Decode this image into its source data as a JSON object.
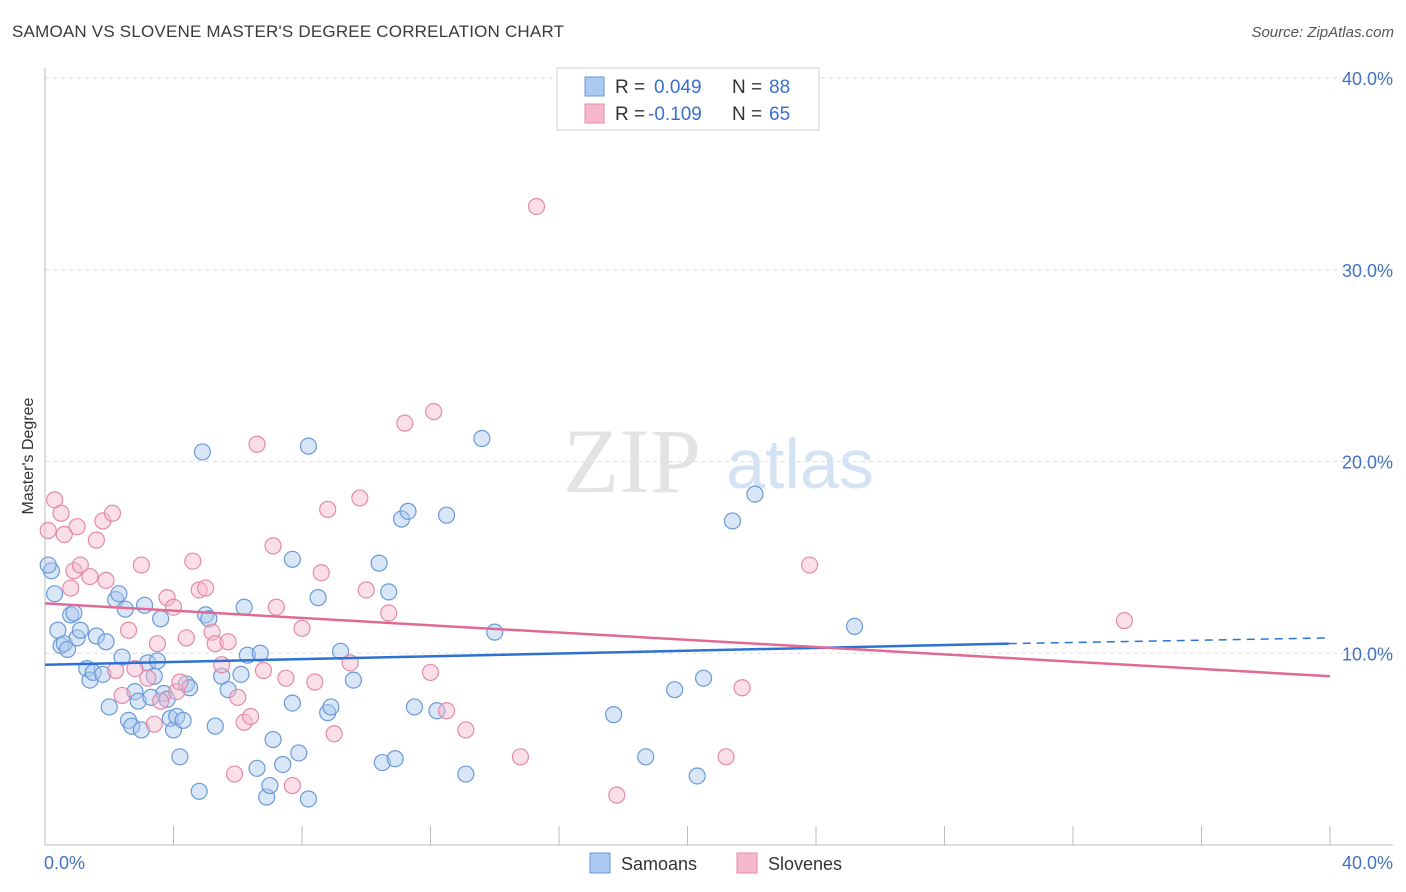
{
  "header": {
    "title": "SAMOAN VS SLOVENE MASTER'S DEGREE CORRELATION CHART",
    "source": "Source: ZipAtlas.com"
  },
  "watermark": {
    "zip": "ZIP",
    "atlas": "atlas"
  },
  "legend": {
    "rows": [
      {
        "r_label": "R = ",
        "r_value": "0.049",
        "n_label": "N = ",
        "n_value": "88"
      },
      {
        "r_label": "R = ",
        "r_value": "-0.109",
        "n_label": "N = ",
        "n_value": "65"
      }
    ]
  },
  "bottom_legend": {
    "series1": "Samoans",
    "series2": "Slovenes"
  },
  "colors": {
    "samoans_fill": "#aac8f0",
    "samoans_stroke": "#6a9ad8",
    "samoans_line": "#2d72d2",
    "slovenes_fill": "#f6b8cc",
    "slovenes_stroke": "#e48aa8",
    "slovenes_line": "#e06a94",
    "grid": "#dddddd",
    "axis_label": "#4472c4"
  },
  "chart_data": {
    "type": "scatter",
    "title": "SAMOAN VS SLOVENE MASTER'S DEGREE CORRELATION CHART",
    "xlabel": "",
    "ylabel": "Master's Degree",
    "xlim": [
      0,
      40
    ],
    "ylim": [
      0,
      40
    ],
    "x_tick_labels": [
      "0.0%",
      "40.0%"
    ],
    "y_tick_values": [
      10,
      20,
      30,
      40
    ],
    "y_tick_labels": [
      "10.0%",
      "20.0%",
      "30.0%",
      "40.0%"
    ],
    "grid": true,
    "series": [
      {
        "name": "Samoans",
        "r": 0.049,
        "n": 88,
        "trend": {
          "x": [
            0,
            30
          ],
          "y": [
            9.4,
            10.5
          ],
          "dashed_to": [
            40,
            10.8
          ]
        },
        "points": [
          [
            0.2,
            14.3
          ],
          [
            0.3,
            13.1
          ],
          [
            0.4,
            11.2
          ],
          [
            0.5,
            10.4
          ],
          [
            0.6,
            10.5
          ],
          [
            0.7,
            10.2
          ],
          [
            0.8,
            12.0
          ],
          [
            0.9,
            12.1
          ],
          [
            1.0,
            10.8
          ],
          [
            1.1,
            11.2
          ],
          [
            1.3,
            9.2
          ],
          [
            1.4,
            8.6
          ],
          [
            1.5,
            9.0
          ],
          [
            1.6,
            10.9
          ],
          [
            1.8,
            8.9
          ],
          [
            1.9,
            10.6
          ],
          [
            2.0,
            7.2
          ],
          [
            2.2,
            12.8
          ],
          [
            2.3,
            13.1
          ],
          [
            2.4,
            9.8
          ],
          [
            2.5,
            12.3
          ],
          [
            2.6,
            6.5
          ],
          [
            2.7,
            6.2
          ],
          [
            2.8,
            8.0
          ],
          [
            2.9,
            7.5
          ],
          [
            3.0,
            6.0
          ],
          [
            3.1,
            12.5
          ],
          [
            3.2,
            9.5
          ],
          [
            3.4,
            8.8
          ],
          [
            3.5,
            9.6
          ],
          [
            3.6,
            11.8
          ],
          [
            3.7,
            7.9
          ],
          [
            3.8,
            7.6
          ],
          [
            3.9,
            6.6
          ],
          [
            4.0,
            6.0
          ],
          [
            4.1,
            6.7
          ],
          [
            4.2,
            4.6
          ],
          [
            4.3,
            6.5
          ],
          [
            4.4,
            8.4
          ],
          [
            4.5,
            8.2
          ],
          [
            4.8,
            2.8
          ],
          [
            4.9,
            20.5
          ],
          [
            5.0,
            12.0
          ],
          [
            5.1,
            11.8
          ],
          [
            5.3,
            6.2
          ],
          [
            5.5,
            8.8
          ],
          [
            5.7,
            8.1
          ],
          [
            6.1,
            8.9
          ],
          [
            6.2,
            12.4
          ],
          [
            6.3,
            9.9
          ],
          [
            6.6,
            4.0
          ],
          [
            6.7,
            10.0
          ],
          [
            6.9,
            2.5
          ],
          [
            7.0,
            3.1
          ],
          [
            7.1,
            5.5
          ],
          [
            7.4,
            4.2
          ],
          [
            7.7,
            14.9
          ],
          [
            7.7,
            7.4
          ],
          [
            7.9,
            4.8
          ],
          [
            8.2,
            2.4
          ],
          [
            8.2,
            20.8
          ],
          [
            8.5,
            12.9
          ],
          [
            8.8,
            6.9
          ],
          [
            8.9,
            7.2
          ],
          [
            9.2,
            10.1
          ],
          [
            9.6,
            8.6
          ],
          [
            10.4,
            14.7
          ],
          [
            10.5,
            4.3
          ],
          [
            10.7,
            13.2
          ],
          [
            10.9,
            4.5
          ],
          [
            11.1,
            17.0
          ],
          [
            11.3,
            17.4
          ],
          [
            11.5,
            7.2
          ],
          [
            12.2,
            7.0
          ],
          [
            12.5,
            17.2
          ],
          [
            13.1,
            3.7
          ],
          [
            13.6,
            21.2
          ],
          [
            14.0,
            11.1
          ],
          [
            17.7,
            6.8
          ],
          [
            18.7,
            4.6
          ],
          [
            19.6,
            8.1
          ],
          [
            20.3,
            3.6
          ],
          [
            20.5,
            8.7
          ],
          [
            21.4,
            16.9
          ],
          [
            22.1,
            18.3
          ],
          [
            25.2,
            11.4
          ],
          [
            0.1,
            14.6
          ],
          [
            3.3,
            7.7
          ]
        ]
      },
      {
        "name": "Slovenes",
        "r": -0.109,
        "n": 65,
        "trend": {
          "x": [
            0,
            40
          ],
          "y": [
            12.6,
            8.8
          ]
        },
        "points": [
          [
            0.1,
            16.4
          ],
          [
            0.3,
            18.0
          ],
          [
            0.5,
            17.3
          ],
          [
            0.6,
            16.2
          ],
          [
            0.8,
            13.4
          ],
          [
            0.9,
            14.3
          ],
          [
            1.0,
            16.6
          ],
          [
            1.1,
            14.6
          ],
          [
            1.4,
            14.0
          ],
          [
            1.6,
            15.9
          ],
          [
            1.8,
            16.9
          ],
          [
            1.9,
            13.8
          ],
          [
            2.1,
            17.3
          ],
          [
            2.2,
            9.1
          ],
          [
            2.4,
            7.8
          ],
          [
            2.6,
            11.2
          ],
          [
            2.8,
            9.2
          ],
          [
            3.0,
            14.6
          ],
          [
            3.2,
            8.7
          ],
          [
            3.4,
            6.3
          ],
          [
            3.5,
            10.5
          ],
          [
            3.6,
            7.5
          ],
          [
            3.8,
            12.9
          ],
          [
            4.0,
            12.4
          ],
          [
            4.1,
            8.0
          ],
          [
            4.2,
            8.5
          ],
          [
            4.4,
            10.8
          ],
          [
            4.6,
            14.8
          ],
          [
            4.8,
            13.3
          ],
          [
            5.0,
            13.4
          ],
          [
            5.2,
            11.1
          ],
          [
            5.3,
            10.5
          ],
          [
            5.5,
            9.4
          ],
          [
            5.7,
            10.6
          ],
          [
            5.9,
            3.7
          ],
          [
            6.0,
            7.7
          ],
          [
            6.2,
            6.4
          ],
          [
            6.4,
            6.7
          ],
          [
            6.6,
            20.9
          ],
          [
            6.8,
            9.1
          ],
          [
            7.1,
            15.6
          ],
          [
            7.2,
            12.4
          ],
          [
            7.5,
            8.7
          ],
          [
            7.7,
            3.1
          ],
          [
            8.0,
            11.3
          ],
          [
            8.4,
            8.5
          ],
          [
            8.6,
            14.2
          ],
          [
            8.8,
            17.5
          ],
          [
            9.0,
            5.8
          ],
          [
            9.5,
            9.5
          ],
          [
            9.8,
            18.1
          ],
          [
            10.0,
            13.3
          ],
          [
            10.7,
            12.1
          ],
          [
            11.2,
            22.0
          ],
          [
            12.1,
            22.6
          ],
          [
            12.0,
            9.0
          ],
          [
            12.5,
            7.0
          ],
          [
            13.1,
            6.0
          ],
          [
            14.8,
            4.6
          ],
          [
            15.3,
            33.3
          ],
          [
            17.8,
            2.6
          ],
          [
            21.2,
            4.6
          ],
          [
            21.7,
            8.2
          ],
          [
            23.8,
            14.6
          ],
          [
            33.6,
            11.7
          ]
        ]
      }
    ]
  }
}
